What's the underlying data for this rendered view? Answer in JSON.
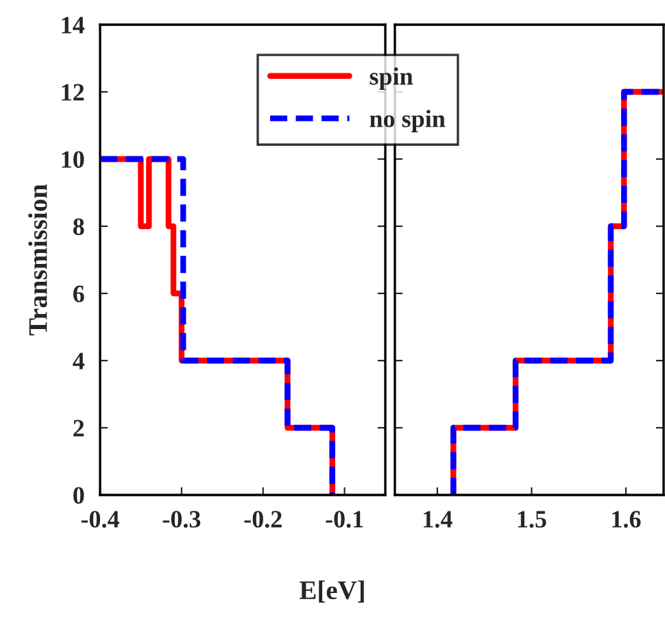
{
  "chart_data": [
    {
      "type": "step",
      "ylabel": "Transmission",
      "xlabel": "E[eV]",
      "xlim": [
        -0.4,
        -0.05
      ],
      "xticks": [
        -0.4,
        -0.3,
        -0.2,
        -0.1
      ],
      "ylim": [
        0,
        14
      ],
      "yticks": [
        0,
        2,
        4,
        6,
        8,
        10,
        12,
        14
      ],
      "legend": "top right",
      "grid": false,
      "series": [
        {
          "name": "spin",
          "color": "#ff0000",
          "line_style": "solid",
          "x": [
            -0.4,
            -0.35,
            -0.34,
            -0.316,
            -0.31,
            -0.3,
            -0.17,
            -0.115
          ],
          "values": [
            10,
            8,
            10,
            8,
            6,
            4,
            2,
            0
          ]
        },
        {
          "name": "no spin",
          "color": "#0000ff",
          "line_style": "dashed",
          "x": [
            -0.4,
            -0.298,
            -0.17,
            -0.115
          ],
          "values": [
            10,
            4,
            2,
            0
          ]
        }
      ]
    },
    {
      "type": "step",
      "xlim": [
        1.355,
        1.64
      ],
      "xticks": [
        1.4,
        1.5,
        1.6
      ],
      "ylim": [
        0,
        14
      ],
      "yticks": [
        0,
        2,
        4,
        6,
        8,
        10,
        12,
        14
      ],
      "tick_labels": "x",
      "grid": false,
      "series": [
        {
          "color": "#ff0000",
          "line_style": "solid",
          "x": [
            1.417,
            1.417,
            1.483,
            1.584,
            1.598,
            1.64
          ],
          "values": [
            0,
            2,
            4,
            8,
            12,
            12
          ]
        },
        {
          "color": "#0000ff",
          "line_style": "dashed",
          "x": [
            1.417,
            1.417,
            1.483,
            1.584,
            1.598,
            1.64
          ],
          "values": [
            0,
            2,
            4,
            8,
            12,
            12
          ]
        }
      ]
    }
  ]
}
